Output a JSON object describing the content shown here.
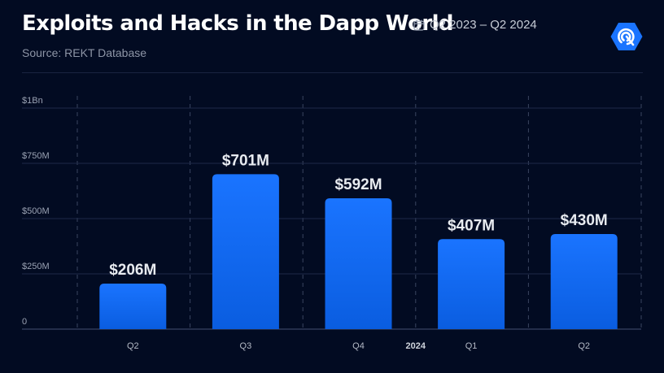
{
  "header": {
    "title": "Exploits and Hacks in the Dapp World",
    "subtitle": "Source: REKT Database",
    "date_range": "Q2 2023 – Q2 2024",
    "calendar_icon": "calendar-icon",
    "logo_icon": "hexagon-signal-logo"
  },
  "colors": {
    "background": "#020b22",
    "bar_top": "#1a74ff",
    "bar_bottom": "#0a5de0",
    "grid": "#1e2a48",
    "logo": "#1a74ff"
  },
  "chart_data": {
    "type": "bar",
    "title": "Exploits and Hacks in the Dapp World",
    "subtitle": "Source: REKT Database",
    "xlabel": "",
    "ylabel": "",
    "categories": [
      "Q2",
      "Q3",
      "Q4",
      "Q1",
      "Q2"
    ],
    "year_marker": {
      "label": "2024",
      "between": [
        "Q4",
        "Q1"
      ]
    },
    "values": [
      206,
      701,
      592,
      407,
      430
    ],
    "value_unit": "$M",
    "data_labels": [
      "$206M",
      "$701M",
      "$592M",
      "$407M",
      "$430M"
    ],
    "ylim": [
      0,
      1000
    ],
    "yticks": [
      0,
      250,
      500,
      750,
      1000
    ],
    "ytick_labels": [
      "0",
      "$250M",
      "$500M",
      "$750M",
      "$1Bn"
    ],
    "grid": true,
    "legend": "none"
  }
}
